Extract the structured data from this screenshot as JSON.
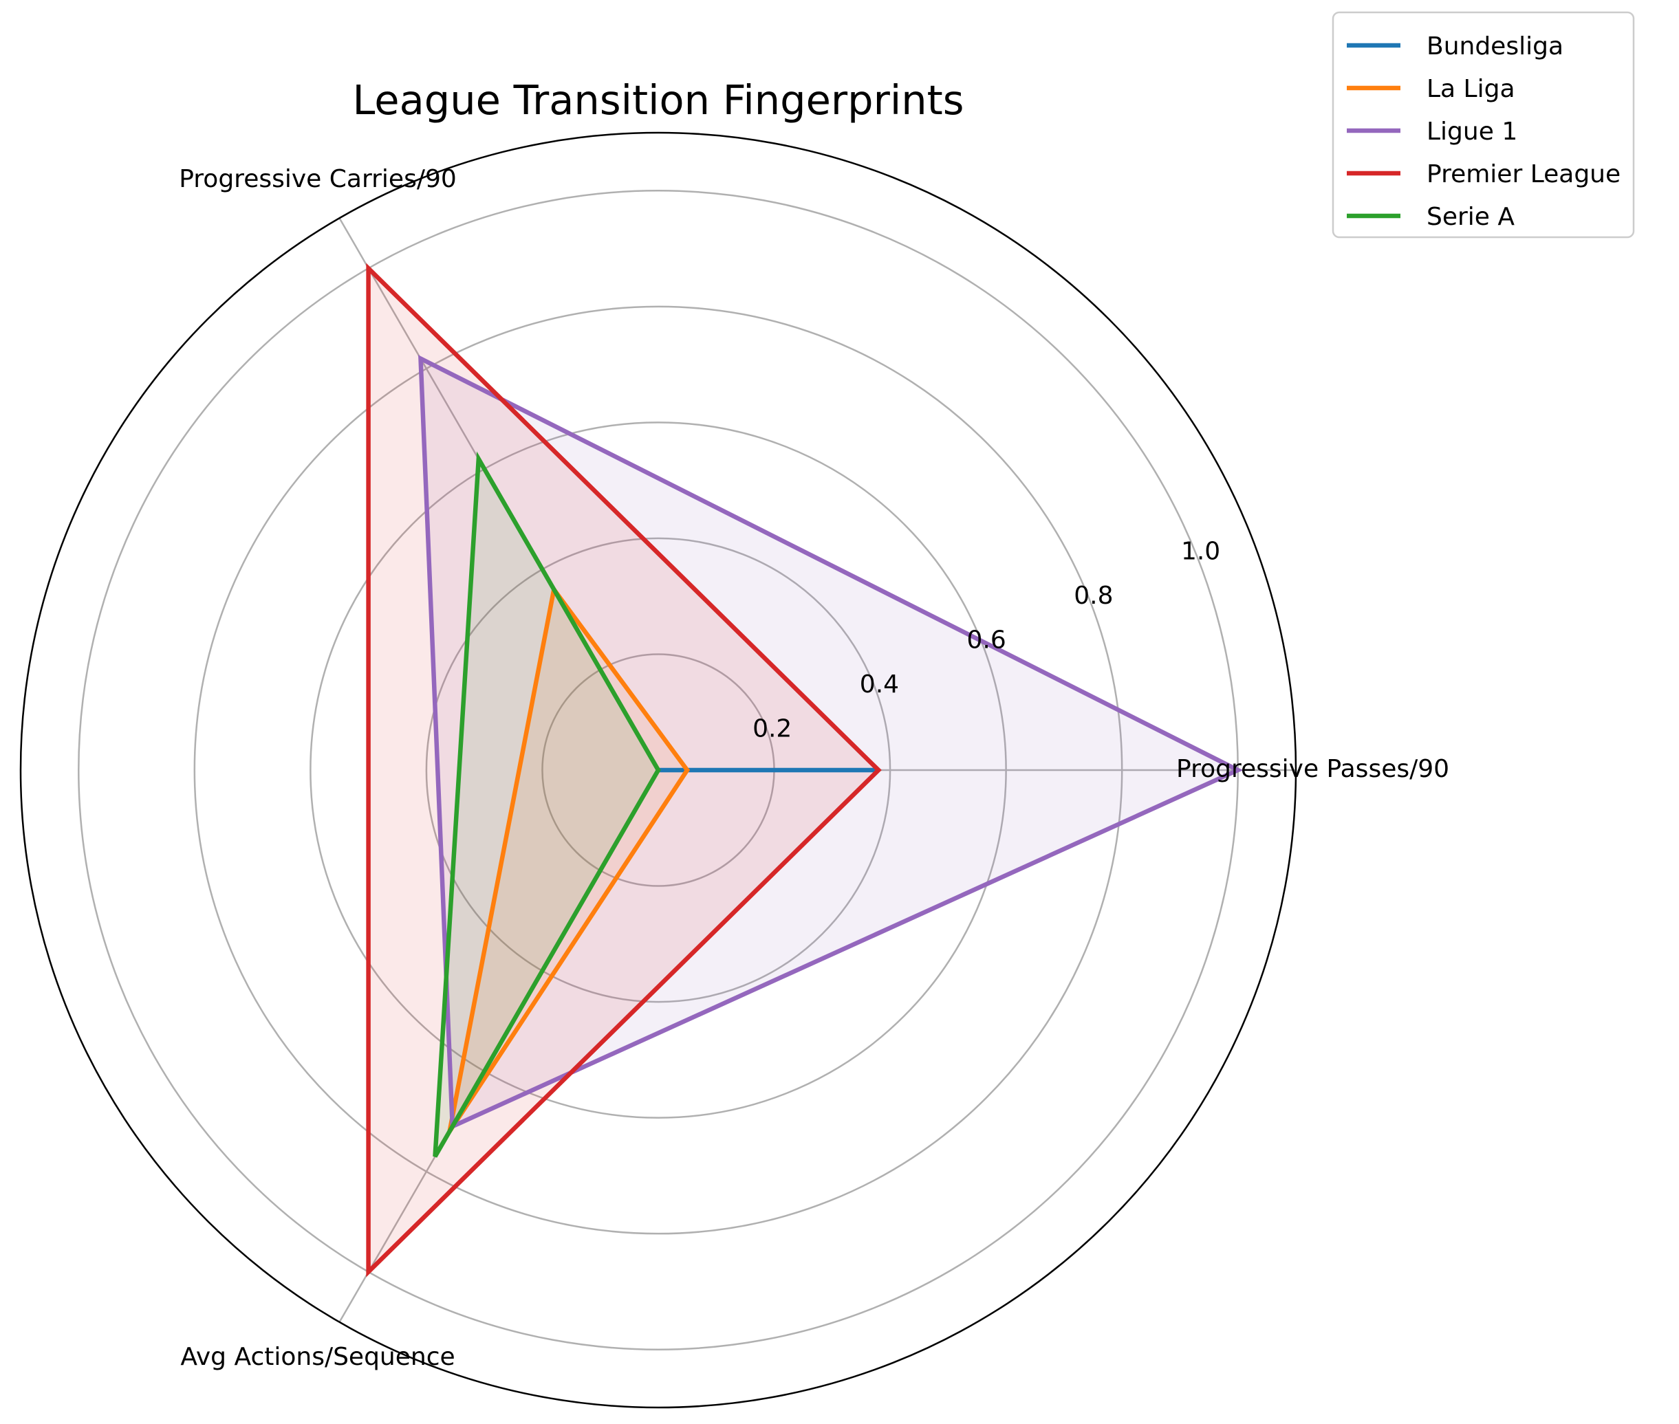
{
  "chart_data": {
    "type": "radar",
    "title": "League Transition Fingerprints",
    "axes": [
      "Progressive Passes/90",
      "Progressive Carries/90",
      "Avg Actions/Sequence"
    ],
    "rlim": [
      0,
      1.1
    ],
    "rticks": [
      0.2,
      0.4,
      0.6,
      0.8,
      1.0
    ],
    "rtick_labels": [
      "0.2",
      "0.4",
      "0.6",
      "0.8",
      "1.0"
    ],
    "grid": true,
    "legend_position": "top-right, outside plot",
    "series": [
      {
        "name": "Bundesliga",
        "color": "#1f77b4",
        "values": [
          0.38,
          0.0,
          0.0
        ]
      },
      {
        "name": "La Liga",
        "color": "#ff7f0e",
        "values": [
          0.05,
          0.36,
          0.72
        ]
      },
      {
        "name": "Ligue 1",
        "color": "#9467bd",
        "values": [
          1.0,
          0.82,
          0.71
        ]
      },
      {
        "name": "Premier League",
        "color": "#d62728",
        "values": [
          0.38,
          1.0,
          1.0
        ]
      },
      {
        "name": "Serie A",
        "color": "#2ca02c",
        "values": [
          0.0,
          0.62,
          0.77
        ]
      }
    ]
  }
}
